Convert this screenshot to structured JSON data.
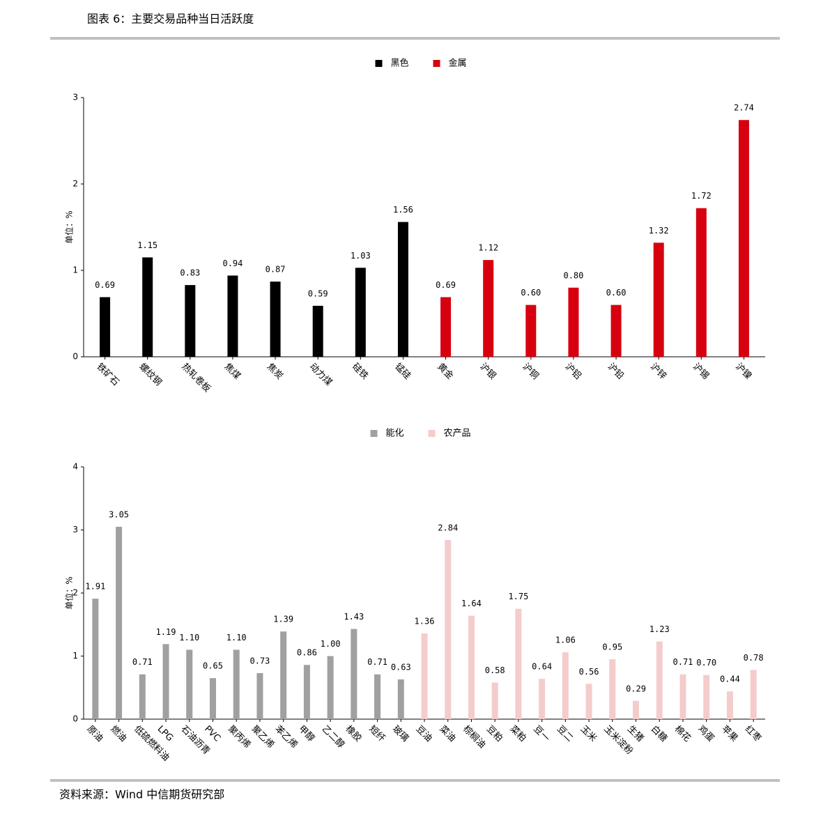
{
  "header": {
    "title": "图表 6：主要交易品种当日活跃度"
  },
  "source": "资料来源：Wind 中信期货研究部",
  "chart_data": [
    {
      "type": "bar",
      "y_label": "单位：%",
      "categories": [
        "铁矿石",
        "螺纹钢",
        "热轧卷板",
        "焦煤",
        "焦炭",
        "动力煤",
        "硅铁",
        "锰硅",
        "黄金",
        "沪银",
        "沪铜",
        "沪铝",
        "沪铅",
        "沪锌",
        "沪锡",
        "沪镍"
      ],
      "series": [
        {
          "name": "黑色",
          "color": "#000000",
          "values": [
            0.69,
            1.15,
            0.83,
            0.94,
            0.87,
            0.59,
            1.03,
            1.56,
            null,
            null,
            null,
            null,
            null,
            null,
            null,
            null
          ],
          "value_labels": [
            "0.69",
            "1.15",
            "0.83",
            "0.94",
            "0.87",
            "0.59",
            "1.03",
            "1.56",
            null,
            null,
            null,
            null,
            null,
            null,
            null,
            null
          ]
        },
        {
          "name": "金属",
          "color": "#d7000f",
          "values": [
            null,
            null,
            null,
            null,
            null,
            null,
            null,
            null,
            0.69,
            1.12,
            0.6,
            0.8,
            0.6,
            1.32,
            1.72,
            2.74
          ],
          "value_labels": [
            null,
            null,
            null,
            null,
            null,
            null,
            null,
            null,
            "0.69",
            "1.12",
            "0.60",
            "0.80",
            "0.60",
            "1.32",
            "1.72",
            "2.74"
          ]
        }
      ],
      "ylim": [
        0,
        3
      ],
      "yticks": [
        0,
        1,
        2,
        3
      ],
      "legend": "top"
    },
    {
      "type": "bar",
      "y_label": "单位：%",
      "categories": [
        "原油",
        "燃油",
        "低硫燃料油",
        "LPG",
        "石油沥青",
        "PVC",
        "聚丙烯",
        "聚乙烯",
        "苯乙烯",
        "甲醇",
        "乙二醇",
        "橡胶",
        "短纤",
        "玻璃",
        "豆油",
        "菜油",
        "棕榈油",
        "豆粕",
        "菜粕",
        "豆一",
        "豆二",
        "玉米",
        "玉米淀粉",
        "生猪",
        "白糖",
        "棉花",
        "鸡蛋",
        "苹果",
        "红枣"
      ],
      "series": [
        {
          "name": "能化",
          "color": "#a0a0a0",
          "values": [
            1.91,
            3.05,
            0.71,
            1.19,
            1.1,
            0.65,
            1.1,
            0.73,
            1.39,
            0.86,
            1.0,
            1.43,
            0.71,
            0.63,
            null,
            null,
            null,
            null,
            null,
            null,
            null,
            null,
            null,
            null,
            null,
            null,
            null,
            null,
            null
          ],
          "value_labels": [
            "1.91",
            "3.05",
            "0.71",
            "1.19",
            "1.10",
            "0.65",
            "1.10",
            "0.73",
            "1.39",
            "0.86",
            "1.00",
            "1.43",
            "0.71",
            "0.63",
            null,
            null,
            null,
            null,
            null,
            null,
            null,
            null,
            null,
            null,
            null,
            null,
            null,
            null,
            null
          ]
        },
        {
          "name": "农产品",
          "color": "#f4cccc",
          "values": [
            null,
            null,
            null,
            null,
            null,
            null,
            null,
            null,
            null,
            null,
            null,
            null,
            null,
            null,
            1.36,
            2.84,
            1.64,
            0.58,
            1.75,
            0.64,
            1.06,
            0.56,
            0.95,
            0.29,
            1.23,
            0.71,
            0.7,
            0.44,
            0.78
          ],
          "value_labels": [
            null,
            null,
            null,
            null,
            null,
            null,
            null,
            null,
            null,
            null,
            null,
            null,
            null,
            null,
            "1.36",
            "2.84",
            "1.64",
            "0.58",
            "1.75",
            "0.64",
            "1.06",
            "0.56",
            "0.95",
            "0.29",
            "1.23",
            "0.71",
            "0.70",
            "0.44",
            "0.78"
          ]
        }
      ],
      "ylim": [
        0,
        4
      ],
      "yticks": [
        0,
        1,
        2,
        3,
        4
      ],
      "legend": "top"
    }
  ]
}
